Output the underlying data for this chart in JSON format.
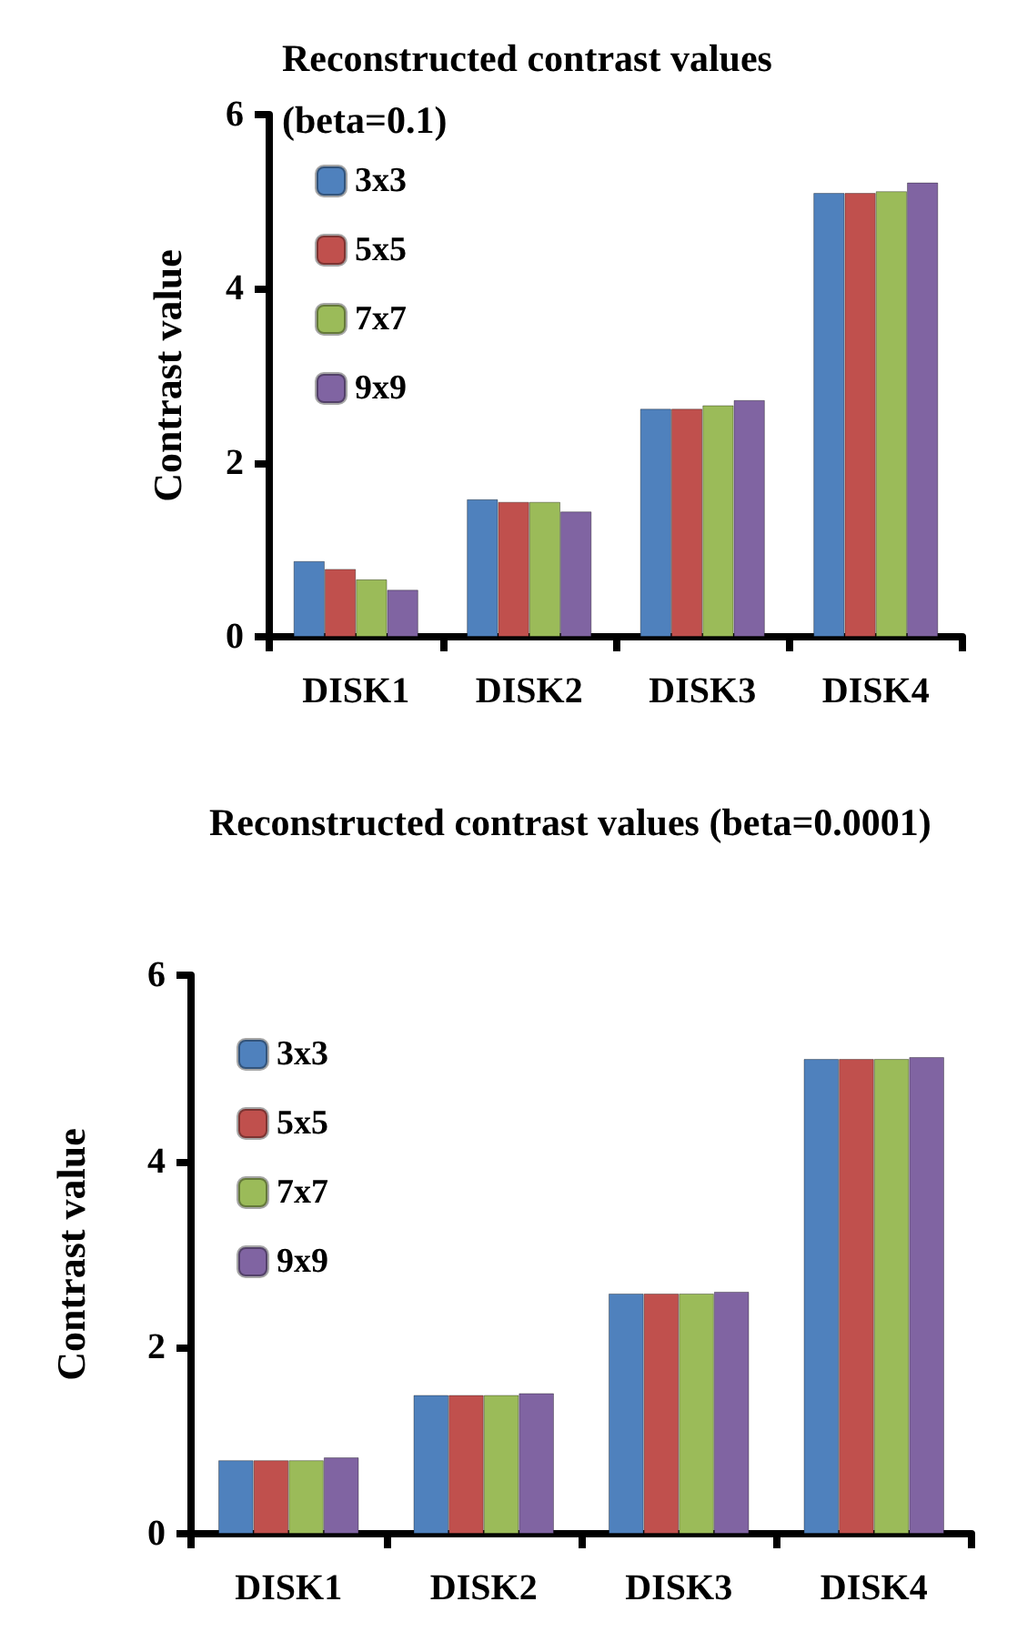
{
  "chart_data": [
    {
      "type": "bar",
      "title": "Reconstructed contrast values (beta=0.1)",
      "ylabel": "Contrast value",
      "categories": [
        "DISK1",
        "DISK2",
        "DISK3",
        "DISK4"
      ],
      "series": [
        {
          "name": "3x3",
          "color": "#4f81bd",
          "values": [
            0.87,
            1.58,
            2.62,
            5.1
          ]
        },
        {
          "name": "5x5",
          "color": "#c0504d",
          "values": [
            0.78,
            1.55,
            2.62,
            5.1
          ]
        },
        {
          "name": "7x7",
          "color": "#9bbb59",
          "values": [
            0.66,
            1.55,
            2.66,
            5.12
          ]
        },
        {
          "name": "9x9",
          "color": "#8064a2",
          "values": [
            0.54,
            1.44,
            2.72,
            5.22
          ]
        }
      ],
      "ylim": [
        0,
        6
      ],
      "yticks": [
        0,
        2,
        4,
        6
      ],
      "grid": false,
      "legend": "top left"
    },
    {
      "type": "bar",
      "title": "Reconstructed contrast values (beta=0.0001)",
      "ylabel": "Contrast value",
      "categories": [
        "DISK1",
        "DISK2",
        "DISK3",
        "DISK4"
      ],
      "series": [
        {
          "name": "3x3",
          "color": "#4f81bd",
          "values": [
            0.79,
            1.49,
            2.58,
            5.1
          ]
        },
        {
          "name": "5x5",
          "color": "#c0504d",
          "values": [
            0.79,
            1.49,
            2.58,
            5.1
          ]
        },
        {
          "name": "7x7",
          "color": "#9bbb59",
          "values": [
            0.79,
            1.49,
            2.58,
            5.1
          ]
        },
        {
          "name": "9x9",
          "color": "#8064a2",
          "values": [
            0.82,
            1.51,
            2.6,
            5.12
          ]
        }
      ],
      "ylim": [
        0,
        6
      ],
      "yticks": [
        0,
        2,
        4,
        6
      ],
      "grid": false,
      "legend": "top left"
    }
  ]
}
